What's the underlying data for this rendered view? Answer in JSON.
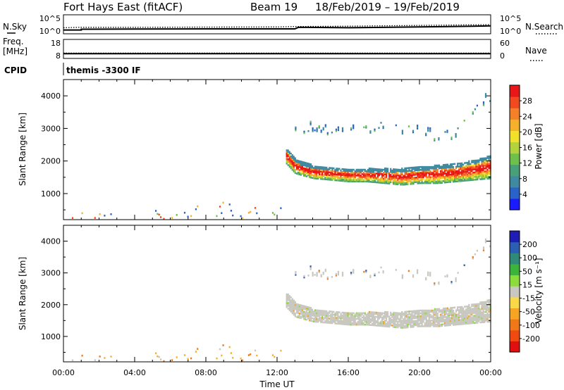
{
  "header": {
    "title": "Fort Hays East (fitACF)",
    "beam": "Beam 19",
    "date_range": "18/Feb/2019 – 19/Feb/2019"
  },
  "chart_data": [
    {
      "type": "line",
      "panel": "noise",
      "left_label": "N.Sky",
      "right_label": "N.Search",
      "left_ticks": [
        "10^5",
        "10^0"
      ],
      "right_ticks": [
        "10^5",
        "10^0"
      ],
      "series": [
        {
          "name": "N.Sky",
          "style": "solid",
          "x": [
            0,
            1,
            1,
            4,
            8,
            12,
            13,
            13.2,
            16,
            20,
            23,
            24
          ],
          "y": [
            1.0,
            1.0,
            1.2,
            1.25,
            1.3,
            1.3,
            1.3,
            1.7,
            1.6,
            1.8,
            2.0,
            2.1
          ]
        },
        {
          "name": "N.Search",
          "style": "dotted",
          "x": [
            0,
            1,
            4,
            8,
            12,
            13,
            16,
            20,
            24
          ],
          "y": [
            1.6,
            1.7,
            1.7,
            1.75,
            1.8,
            1.9,
            2.0,
            2.2,
            2.4
          ]
        }
      ]
    },
    {
      "type": "line",
      "panel": "frequency",
      "left_label": "Freq.",
      "left_unit": "[MHz]",
      "right_label": "Nave",
      "left_ticks": [
        "18",
        "8"
      ],
      "right_ticks": [
        "60",
        "0"
      ],
      "series": [
        {
          "name": "Freq.",
          "style": "solid",
          "x": [
            0,
            24
          ],
          "y": [
            10.5,
            10.5
          ]
        },
        {
          "name": "Nave",
          "style": "dotted",
          "x": [
            0,
            24
          ],
          "y": [
            10.8,
            10.8
          ]
        }
      ]
    },
    {
      "type": "table",
      "panel": "cpid",
      "left_label": "CPID",
      "text": "themis -3300 IF"
    },
    {
      "type": "heatmap",
      "panel": "power",
      "ylabel": "Slant Range [km]",
      "yticks": [
        "1000",
        "2000",
        "3000",
        "4000"
      ],
      "yticks_values": [
        1000,
        2000,
        3000,
        4000
      ],
      "xlim": [
        0,
        24
      ],
      "ylim": [
        200,
        4500
      ],
      "colorbar_label": "Power [dB]",
      "colorbar_ticks": [
        "4",
        "8",
        "12",
        "16",
        "20",
        "24",
        "28"
      ],
      "colorbar_colors": [
        "#1b1bff",
        "#2a63c8",
        "#3f8aa0",
        "#47a078",
        "#6fc04a",
        "#b4d23c",
        "#f2e12a",
        "#f5b02c",
        "#f5802a",
        "#f24a20",
        "#e81818"
      ],
      "features": [
        {
          "name": "main-band",
          "x": [
            12.5,
            13,
            14,
            15,
            16,
            17,
            18,
            19,
            20,
            21,
            22,
            23,
            24
          ],
          "y_low": [
            1950,
            1650,
            1500,
            1450,
            1400,
            1400,
            1350,
            1300,
            1350,
            1350,
            1400,
            1450,
            1500
          ],
          "y_high": [
            2450,
            2100,
            1900,
            1850,
            1800,
            1800,
            1800,
            1800,
            1850,
            1900,
            1950,
            2050,
            2200
          ]
        },
        {
          "name": "upper-echo",
          "x": [
            13,
            14,
            15,
            16,
            17,
            18,
            19,
            20,
            21,
            22,
            23,
            24
          ],
          "y": [
            2900,
            3050,
            2950,
            2900,
            3000,
            3100,
            3000,
            2900,
            2750,
            2850,
            3650,
            3950
          ]
        }
      ]
    },
    {
      "type": "heatmap",
      "panel": "velocity",
      "ylabel": "Slant Range [km]",
      "yticks": [
        "1000",
        "2000",
        "3000",
        "4000"
      ],
      "yticks_values": [
        1000,
        2000,
        3000,
        4000
      ],
      "xlim": [
        0,
        24
      ],
      "ylim": [
        200,
        4500
      ],
      "xticks": [
        "00:00",
        "04:00",
        "08:00",
        "12:00",
        "16:00",
        "20:00",
        "00:00"
      ],
      "xticks_values": [
        0,
        4,
        8,
        12,
        16,
        20,
        24
      ],
      "xlabel": "Time UT",
      "colorbar_label": "Velocity [m s⁻¹]",
      "colorbar_ticks": [
        "-200",
        "-100",
        "-50",
        "-15",
        "15",
        "50",
        "100",
        "200"
      ],
      "colorbar_colors": [
        "#e01010",
        "#f04a10",
        "#f07818",
        "#f6a423",
        "#f9d84a",
        "#c8c8c0",
        "#8cdc3c",
        "#3cb43c",
        "#2f8a7a",
        "#2b5fb4",
        "#1e1eb4"
      ],
      "features": [
        {
          "name": "main-band",
          "x": [
            12.5,
            13,
            14,
            15,
            16,
            17,
            18,
            19,
            20,
            21,
            22,
            23,
            24
          ],
          "y_low": [
            1950,
            1650,
            1500,
            1450,
            1400,
            1400,
            1350,
            1300,
            1350,
            1350,
            1400,
            1450,
            1500
          ],
          "y_high": [
            2450,
            2100,
            1900,
            1850,
            1800,
            1800,
            1800,
            1800,
            1850,
            1900,
            1950,
            2050,
            2200
          ]
        },
        {
          "name": "upper-echo",
          "x": [
            13,
            14,
            15,
            16,
            17,
            18,
            19,
            20,
            21,
            22,
            23,
            24
          ],
          "y": [
            2900,
            3050,
            2950,
            2900,
            3000,
            3100,
            3000,
            2900,
            2750,
            2850,
            3650,
            3950
          ]
        }
      ]
    }
  ]
}
